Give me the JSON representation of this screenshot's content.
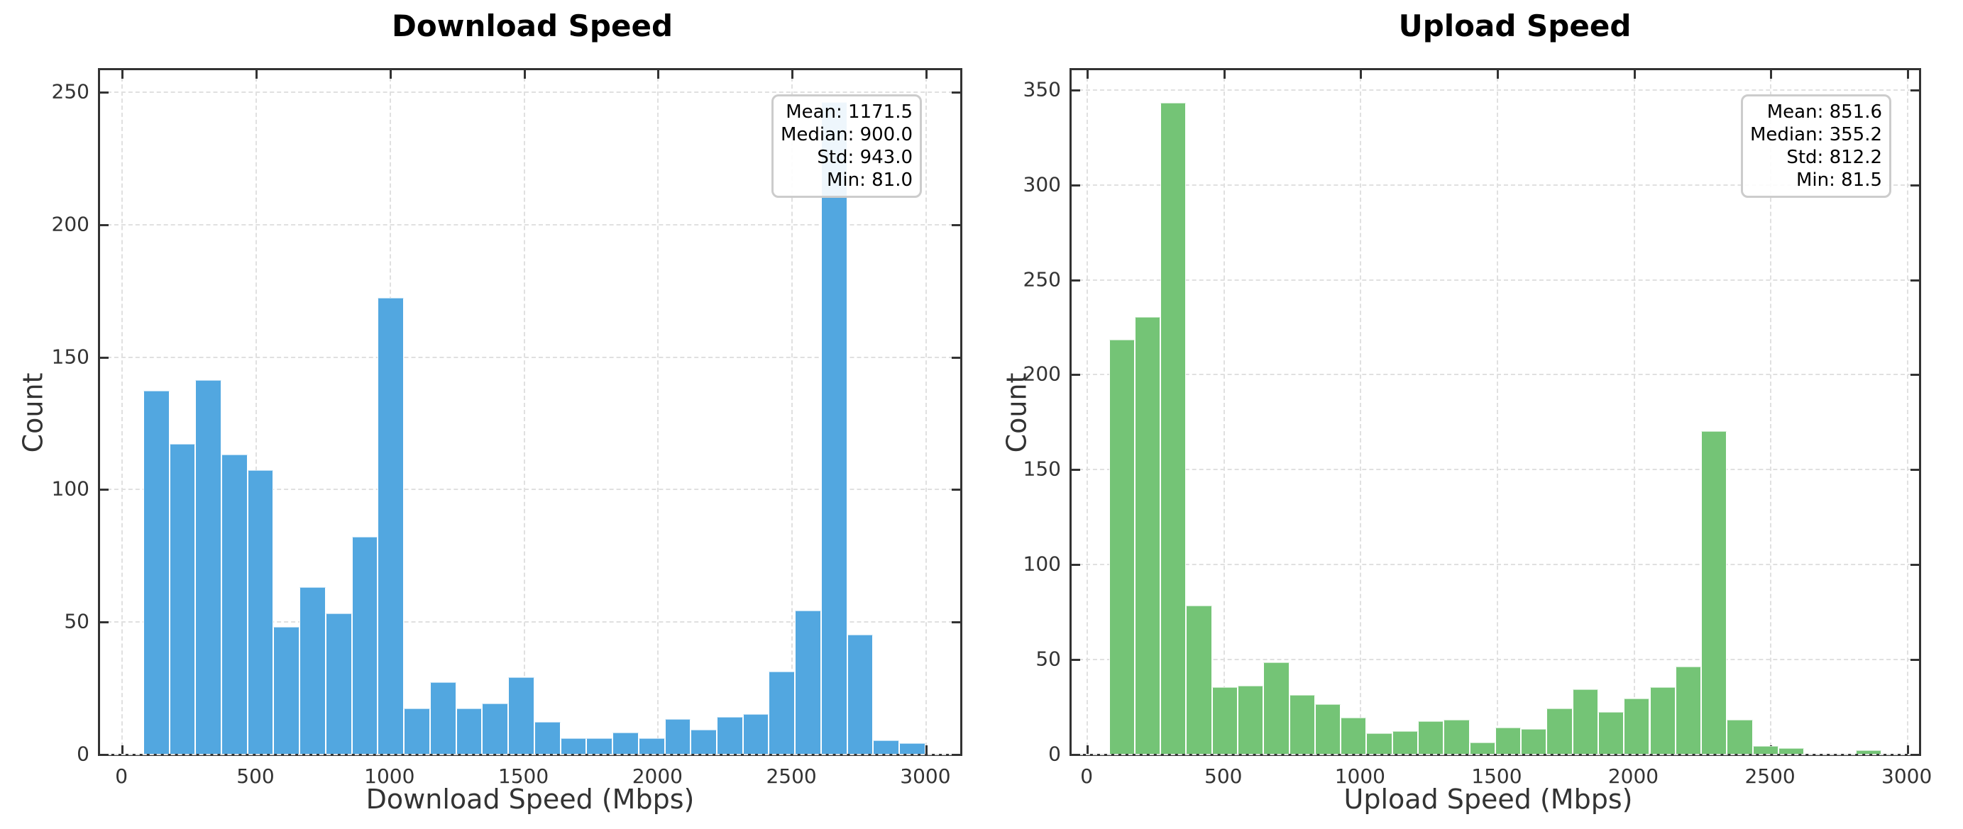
{
  "chart_data": [
    {
      "type": "bar",
      "subtype": "histogram",
      "title": "Download Speed",
      "xlabel": "Download Speed (Mbps)",
      "ylabel": "Count",
      "color": "#52a7e0",
      "xlim": [
        -80,
        3130
      ],
      "ylim": [
        0,
        258
      ],
      "xticks": [
        0,
        500,
        1000,
        1500,
        2000,
        2500,
        3000
      ],
      "yticks": [
        0,
        50,
        100,
        150,
        200,
        250
      ],
      "grid": true,
      "bin_start": 81,
      "bin_width": 97.3,
      "values": [
        137,
        117,
        141,
        113,
        107,
        48,
        63,
        53,
        82,
        172,
        17,
        27,
        17,
        19,
        29,
        12,
        6,
        6,
        8,
        6,
        13,
        9,
        14,
        15,
        31,
        54,
        246,
        45,
        5,
        4
      ],
      "stats": {
        "mean": "Mean: 1171.5",
        "median": "Median: 900.0",
        "std": "Std: 943.0",
        "min": "Min: 81.0"
      }
    },
    {
      "type": "bar",
      "subtype": "histogram",
      "title": "Upload Speed",
      "xlabel": "Upload Speed (Mbps)",
      "ylabel": "Count",
      "color": "#74c476",
      "xlim": [
        -55,
        3045
      ],
      "ylim": [
        0,
        360
      ],
      "xticks": [
        0,
        500,
        1000,
        1500,
        2000,
        2500,
        3000
      ],
      "yticks": [
        0,
        50,
        100,
        150,
        200,
        250,
        300,
        350
      ],
      "grid": true,
      "bin_start": 81.5,
      "bin_width": 94.2,
      "values": [
        218,
        230,
        343,
        78,
        35,
        36,
        48,
        31,
        26,
        19,
        11,
        12,
        17,
        18,
        6,
        14,
        13,
        24,
        34,
        22,
        29,
        35,
        46,
        170,
        18,
        4,
        3,
        0,
        0,
        2
      ],
      "stats": {
        "mean": "Mean: 851.6",
        "median": "Median: 355.2",
        "std": "Std: 812.2",
        "min": "Min: 81.5"
      }
    }
  ]
}
